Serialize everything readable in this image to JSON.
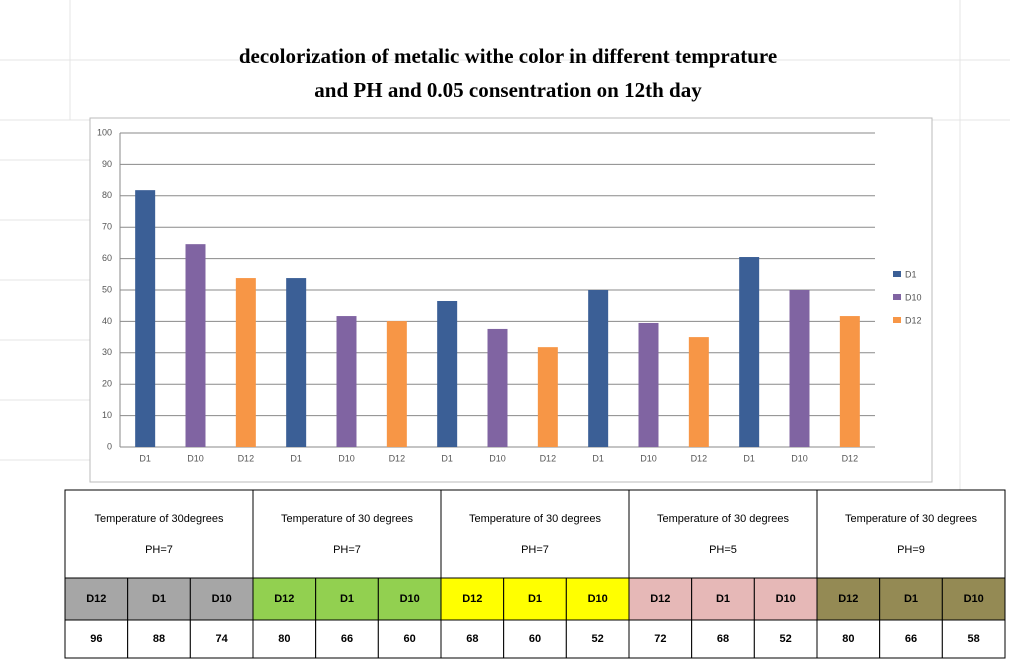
{
  "chart_data": {
    "type": "bar",
    "title": [
      "decolorization of metalic withe color in different temprature",
      "and PH and 0.05 consentration on 12th day"
    ],
    "bar_labels": [
      "D1",
      "D10",
      "D12",
      "D1",
      "D10",
      "D12",
      "D1",
      "D10",
      "D12",
      "D1",
      "D10",
      "D12",
      "D1",
      "D10",
      "D12"
    ],
    "series": [
      {
        "name": "D1",
        "color": "#3b5f96",
        "values": [
          81.8,
          53.8,
          46.5,
          50,
          60.5
        ]
      },
      {
        "name": "D10",
        "color": "#8064a2",
        "values": [
          64.6,
          41.7,
          37.6,
          39.5,
          50
        ]
      },
      {
        "name": "D12",
        "color": "#f79646",
        "values": [
          53.8,
          40.1,
          31.8,
          35,
          41.7
        ]
      }
    ],
    "ylim": [
      0,
      100
    ],
    "yticks": [
      0,
      10,
      20,
      30,
      40,
      50,
      60,
      70,
      80,
      90,
      100
    ],
    "grid": true,
    "legend": "right"
  },
  "table": {
    "groups": [
      {
        "title": "Temperature of 30degrees",
        "ph": "PH=7",
        "color": "#a6a6a6"
      },
      {
        "title": "Temperature of 30 degrees",
        "ph": "PH=7",
        "color": "#92d050"
      },
      {
        "title": "Temperature of 30 degrees",
        "ph": "PH=7",
        "color": "#ffff00"
      },
      {
        "title": "Temperature of 30 degrees",
        "ph": "PH=5",
        "color": "#e6b8b7"
      },
      {
        "title": "Temperature of 30 degrees",
        "ph": "PH=9",
        "color": "#948a54"
      }
    ],
    "subheaders": [
      [
        "D12",
        "D1",
        "D10"
      ],
      [
        "D12",
        "D1",
        "D10"
      ],
      [
        "D12",
        "D1",
        "D10"
      ],
      [
        "D12",
        "D1",
        "D10"
      ],
      [
        "D12",
        "D1",
        "D10"
      ]
    ],
    "values": [
      [
        96,
        88,
        74
      ],
      [
        80,
        66,
        60
      ],
      [
        68,
        60,
        52
      ],
      [
        72,
        68,
        52
      ],
      [
        80,
        66,
        58
      ]
    ]
  }
}
